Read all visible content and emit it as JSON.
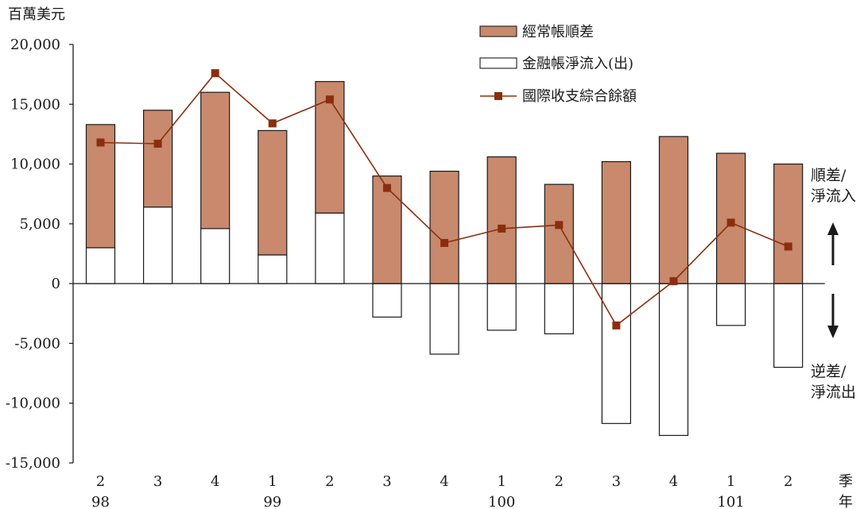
{
  "chart_data": {
    "type": "bar",
    "unit_label": "百萬美元",
    "ylim": [
      -15000,
      20000
    ],
    "y_ticks": [
      20000,
      15000,
      10000,
      5000,
      0,
      -5000,
      -10000,
      -15000
    ],
    "y_tick_labels": [
      "20,000",
      "15,000",
      "10,000",
      "5,000",
      "0",
      "-5,000",
      "-10,000",
      "-15,000"
    ],
    "categories": [
      "2",
      "3",
      "4",
      "1",
      "2",
      "3",
      "4",
      "1",
      "2",
      "3",
      "4",
      "1",
      "2"
    ],
    "year_labels": [
      {
        "label": "98",
        "index": 0
      },
      {
        "label": "99",
        "index": 3
      },
      {
        "label": "100",
        "index": 7
      },
      {
        "label": "101",
        "index": 11
      }
    ],
    "axis_suffix": [
      "季",
      "年"
    ],
    "series": [
      {
        "name": "經常帳順差",
        "type": "bar",
        "color": "#c8896c",
        "values": [
          10300,
          8100,
          11400,
          10400,
          11000,
          9000,
          9400,
          10600,
          8300,
          10200,
          12300,
          10900,
          10000
        ]
      },
      {
        "name": "金融帳淨流入(出)",
        "type": "bar",
        "color": "#ffffff",
        "values": [
          3000,
          6400,
          4600,
          2400,
          5900,
          -2800,
          -5900,
          -3900,
          -4200,
          -11700,
          -12700,
          -3500,
          -7000
        ]
      },
      {
        "name": "國際收支綜合餘額",
        "type": "line",
        "color": "#8b2e0f",
        "values": [
          11800,
          11700,
          17600,
          13400,
          15400,
          8000,
          3400,
          4600,
          4900,
          -3500,
          200,
          5100,
          3100
        ]
      }
    ],
    "side_labels": {
      "top": [
        "順差/",
        "淨流入"
      ],
      "bottom": [
        "逆差/",
        "淨流出"
      ]
    },
    "arrow_up": "up-arrow",
    "arrow_down": "down-arrow",
    "legend_position": "top-right",
    "grid": false
  }
}
